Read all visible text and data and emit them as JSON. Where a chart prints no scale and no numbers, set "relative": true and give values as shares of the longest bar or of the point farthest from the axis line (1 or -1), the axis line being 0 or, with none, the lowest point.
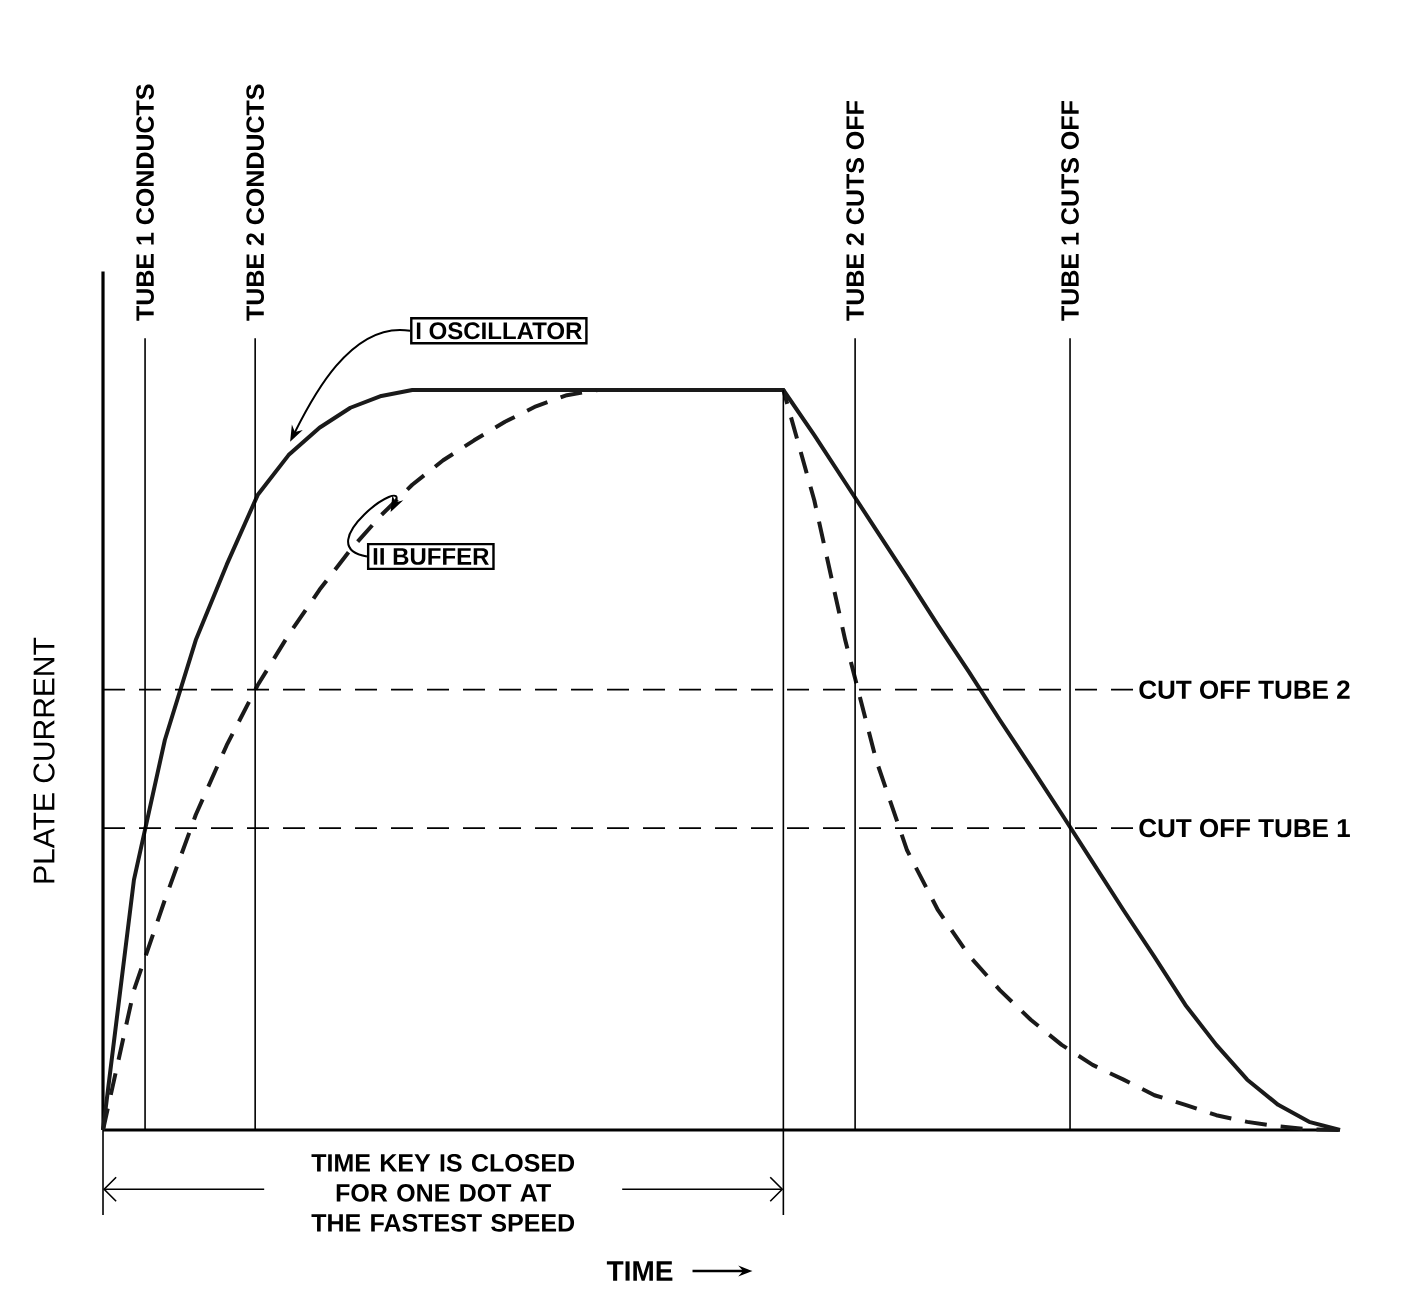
{
  "chart_data": {
    "type": "line",
    "relative": true,
    "xlabel": "TIME",
    "ylabel": "PLATE CURRENT",
    "marker": "none",
    "categories": [
      null,
      null,
      null,
      null,
      null,
      null,
      null,
      null,
      null,
      null,
      null,
      null,
      null,
      null,
      null,
      null,
      null,
      null,
      null,
      null,
      null,
      null,
      null,
      null,
      null,
      null,
      null,
      null,
      null,
      null,
      null,
      null,
      null,
      null,
      null,
      null,
      null,
      null,
      null,
      null,
      null
    ],
    "series": [
      {
        "name": "I OSCILLATOR",
        "color": "#1a1a1a",
        "line_style": "solid",
        "values": [
          0,
          0.338,
          0.527,
          0.662,
          0.764,
          0.858,
          0.912,
          0.949,
          0.976,
          0.992,
          1,
          1,
          1,
          1,
          1,
          1,
          1,
          1,
          1,
          1,
          1,
          1,
          1,
          0.939,
          0.875,
          0.811,
          0.747,
          0.682,
          0.619,
          0.554,
          0.491,
          0.427,
          0.362,
          0.297,
          0.234,
          0.169,
          0.115,
          0.068,
          0.034,
          0.011,
          0
        ]
      },
      {
        "name": "II BUFFER",
        "color": "#1a1a1a",
        "line_style": "dashed",
        "values": [
          0,
          0.189,
          0.311,
          0.426,
          0.52,
          0.601,
          0.669,
          0.73,
          0.784,
          0.831,
          0.872,
          0.905,
          0.932,
          0.957,
          0.978,
          0.993,
          1,
          1,
          1,
          1,
          1,
          1,
          1,
          0.851,
          0.662,
          0.5,
          0.378,
          0.297,
          0.236,
          0.189,
          0.149,
          0.115,
          0.088,
          0.068,
          0.047,
          0.034,
          0.02,
          0.011,
          0.005,
          0.001,
          0
        ]
      }
    ],
    "ref_lines": [
      {
        "axis": "y",
        "value": 0.595,
        "label": "CUT OFF TUBE 2",
        "line_style": "dashed"
      },
      {
        "axis": "y",
        "value": 0.408,
        "label": "CUT OFF TUBE 1",
        "line_style": "dashed"
      }
    ],
    "annotations": [
      "TUBE 1 CONDUCTS",
      "TUBE 2 CONDUCTS",
      "TUBE 2 CUTS OFF",
      "TUBE 1 CUTS OFF",
      "TIME KEY IS CLOSED FOR ONE DOT AT THE FASTEST SPEED"
    ]
  }
}
